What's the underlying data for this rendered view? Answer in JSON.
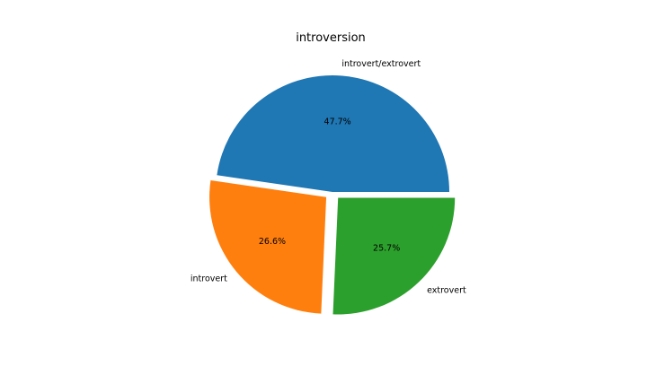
{
  "chart_data": {
    "type": "pie",
    "title": "introversion",
    "slices": [
      {
        "label": "introvert/extrovert",
        "value": 47.7,
        "pct_label": "47.7%",
        "color": "#1f77b4",
        "exploded": false
      },
      {
        "label": "introvert",
        "value": 26.6,
        "pct_label": "26.6%",
        "color": "#ff7f0e",
        "exploded": true
      },
      {
        "label": "extrovert",
        "value": 25.7,
        "pct_label": "25.7%",
        "color": "#2ca02c",
        "exploded": true
      }
    ],
    "start_angle_deg": 0,
    "direction": "counterclockwise",
    "legend": "none"
  }
}
